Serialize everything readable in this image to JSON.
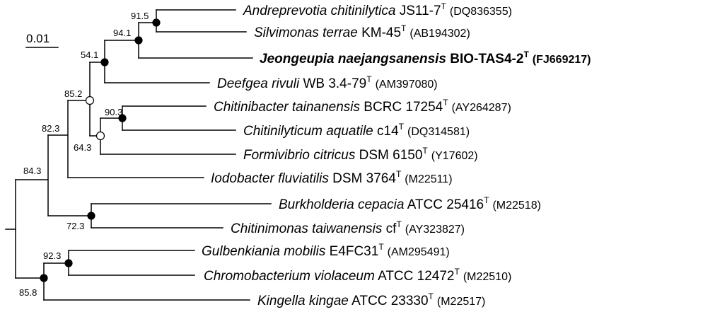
{
  "scale_bar": {
    "label": "0.01"
  },
  "taxa": [
    {
      "id": "andreprevotia",
      "italic": "Andreprevotia chitinilytica",
      "strain": "JS11-7",
      "sup": "T",
      "accession": "(DQ836355)",
      "bold": false
    },
    {
      "id": "silvimonas",
      "italic": "Silvimonas terrae",
      "strain": "KM-45",
      "sup": "T",
      "accession": "(AB194302)",
      "bold": false
    },
    {
      "id": "jeongeupia",
      "italic": "Jeongeupia naejangsanensis",
      "strain": "BIO-TAS4-2",
      "sup": "T",
      "accession": "(FJ669217)",
      "bold": true
    },
    {
      "id": "deefgea",
      "italic": "Deefgea rivuli",
      "strain": "WB 3.4-79",
      "sup": "T",
      "accession": "(AM397080)",
      "bold": false
    },
    {
      "id": "chitinibacter",
      "italic": "Chitinibacter tainanensis",
      "strain": "BCRC 17254",
      "sup": "T",
      "accession": "(AY264287)",
      "bold": false
    },
    {
      "id": "chitinilyticum",
      "italic": "Chitinilyticum aquatile",
      "strain": "c14",
      "sup": "T",
      "accession": "(DQ314581)",
      "bold": false
    },
    {
      "id": "formivibrio",
      "italic": "Formivibrio citricus",
      "strain": "DSM 6150",
      "sup": "T",
      "accession": "(Y17602)",
      "bold": false
    },
    {
      "id": "iodobacter",
      "italic": "Iodobacter fluviatilis",
      "strain": "DSM 3764",
      "sup": "T",
      "accession": "(M22511)",
      "bold": false
    },
    {
      "id": "burkholderia",
      "italic": "Burkholderia cepacia",
      "strain": "ATCC 25416",
      "sup": "T",
      "accession": "(M22518)",
      "bold": false
    },
    {
      "id": "chitinimonas",
      "italic": "Chitinimonas taiwanensis",
      "strain": "cf",
      "sup": "T",
      "accession": "(AY323827)",
      "bold": false
    },
    {
      "id": "gulbenkiania",
      "italic": "Gulbenkiania mobilis",
      "strain": "E4FC31",
      "sup": "T",
      "accession": "(AM295491)",
      "bold": false
    },
    {
      "id": "chromobacterium",
      "italic": "Chromobacterium violaceum",
      "strain": "ATCC 12472",
      "sup": "T",
      "accession": "(M22510)",
      "bold": false
    },
    {
      "id": "kingella",
      "italic": "Kingella kingae",
      "strain": "ATCC 23330",
      "sup": "T",
      "accession": "(M22517)",
      "bold": false
    }
  ],
  "bootstrap": {
    "n915": "91.5",
    "n941": "94.1",
    "n541": "54.1",
    "n852": "85.2",
    "n903": "90.3",
    "n643": "64.3",
    "n823": "82.3",
    "n843": "84.3",
    "n723": "72.3",
    "n923": "92.3",
    "n858": "85.8"
  }
}
